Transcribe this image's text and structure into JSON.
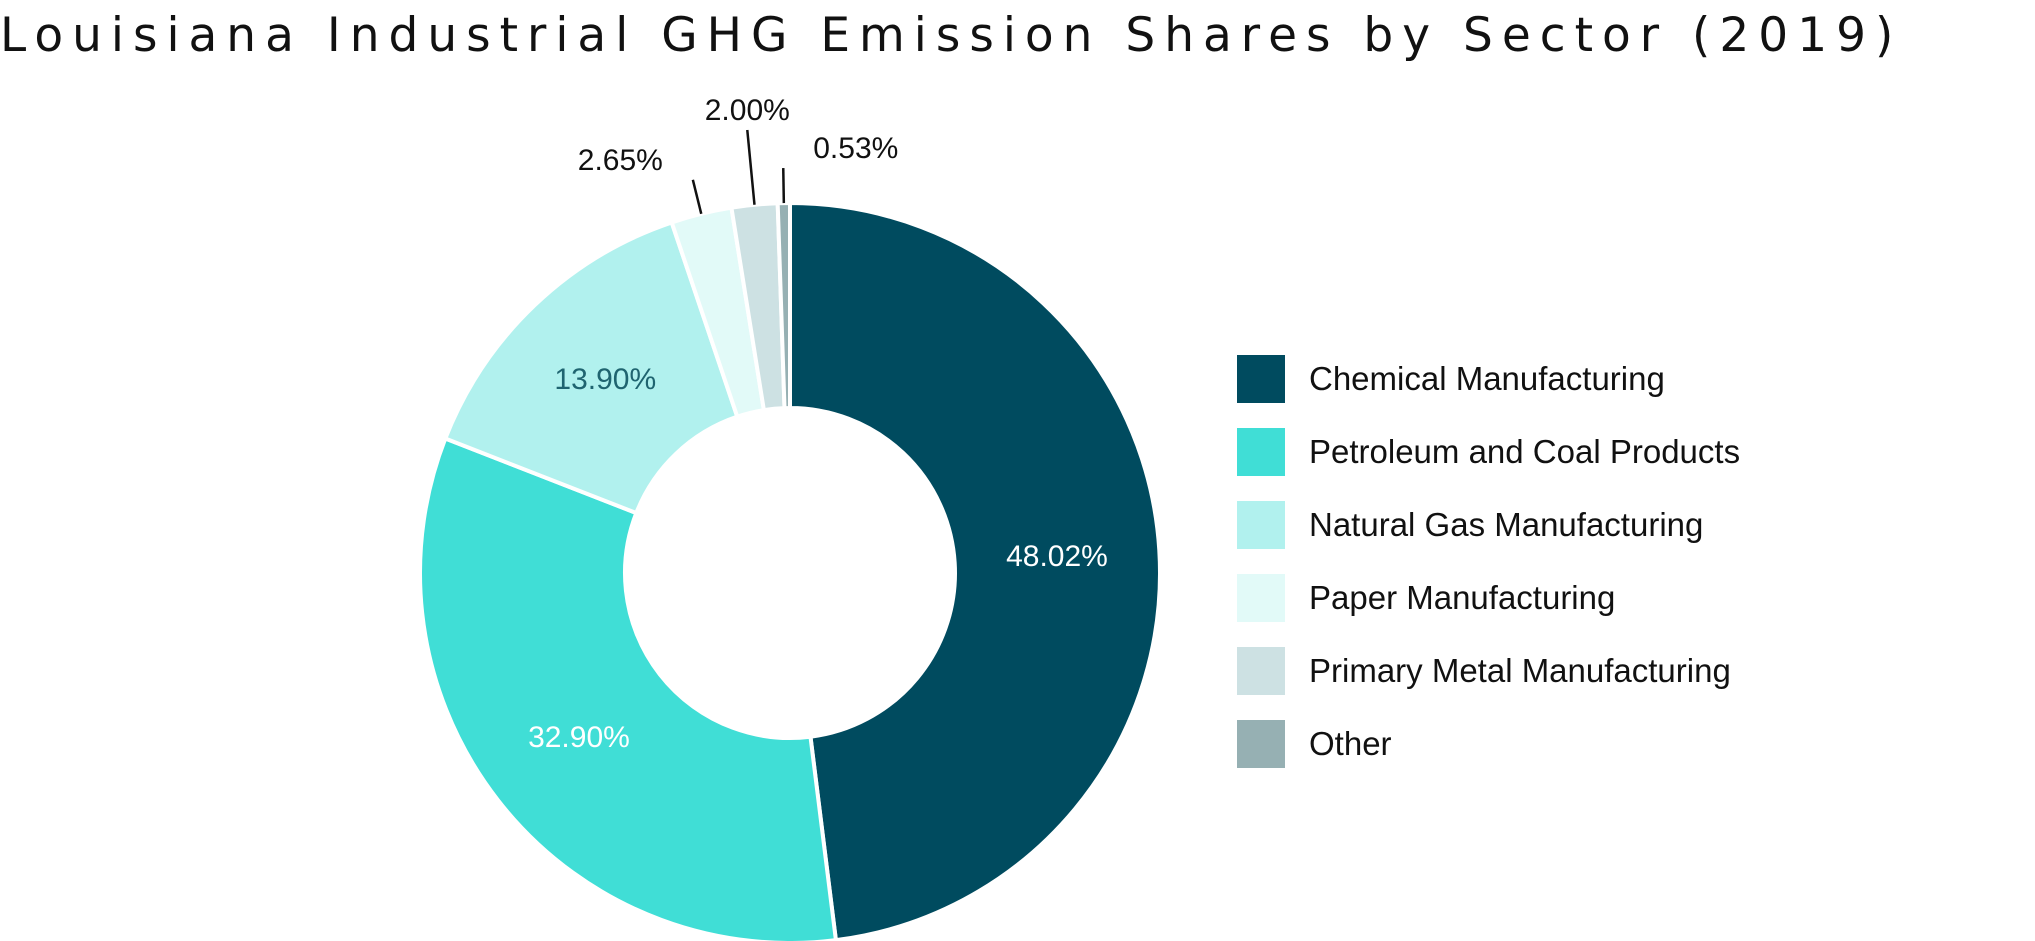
{
  "chart_data": {
    "type": "pie",
    "variant": "donut",
    "title": "Louisiana Industrial GHG Emission Shares by Sector (2019)",
    "legend_position": "right",
    "categories": [
      "Chemical Manufacturing",
      "Petroleum and Coal Products",
      "Natural Gas Manufacturing",
      "Paper Manufacturing",
      "Primary Metal Manufacturing",
      "Other"
    ],
    "values": [
      48.02,
      32.9,
      13.9,
      2.65,
      2.0,
      0.53
    ],
    "labels": [
      "48.02%",
      "32.90%",
      "13.90%",
      "2.65%",
      "2.00%",
      "0.53%"
    ],
    "colors": [
      "#004b5f",
      "#40ded6",
      "#b1f1ee",
      "#e2faf8",
      "#cde1e3",
      "#96b0b3"
    ],
    "label_colors": [
      "#ffffff",
      "#ffffff",
      "#1f6470",
      "#111111",
      "#111111",
      "#111111"
    ]
  }
}
